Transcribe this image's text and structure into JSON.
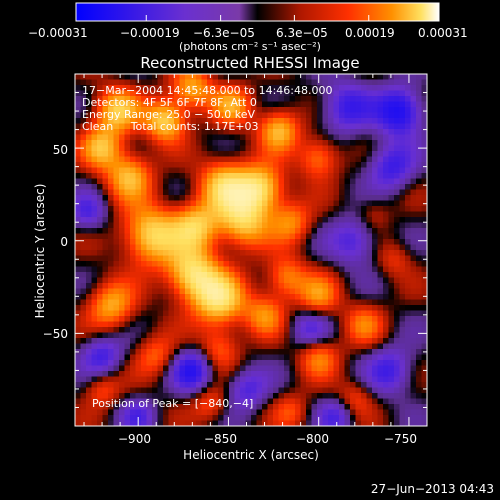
{
  "chart_data": {
    "type": "heatmap",
    "title": "Reconstructed RHESSI Image",
    "xlabel": "Heliocentric X (arcsec)",
    "ylabel": "Heliocentric Y (arcsec)",
    "xlim": [
      -935,
      -740
    ],
    "ylim": [
      -100,
      90
    ],
    "xticks": [
      -900,
      -850,
      -800,
      -750
    ],
    "yticks": [
      50,
      0,
      -50
    ],
    "xtick_labels": [
      "−900",
      "−850",
      "−800",
      "−750"
    ],
    "ytick_labels": [
      "50",
      "0",
      "−50"
    ],
    "colorbar": {
      "range": [
        -0.00031,
        0.00031
      ],
      "tick_values": [
        -0.00031,
        -0.00019,
        -6.3e-05,
        6.3e-05,
        0.00019,
        0.00031
      ],
      "tick_labels": [
        "−0.00031",
        "−0.00019",
        "−6.3e−05",
        "6.3e−05",
        "0.00019",
        "0.00031"
      ],
      "units_label": "(photons cm⁻² s⁻¹ asec⁻²)"
    },
    "annotations": {
      "time_range": "17−Mar−2004 14:45:48.000 to 14:46:48.000",
      "detectors": "Detectors: 4F 5F 6F 7F 8F, Att 0",
      "energy_range": "Energy Range: 25.0 − 50.0 keV",
      "clean_counts": "Clean     Total counts: 1.17E+03",
      "peak_position": "Position of Peak = [−840,−4]"
    },
    "peak": [
      -840,
      -4
    ],
    "blobs": [
      {
        "x": -870,
        "y": -18,
        "v": 1.0,
        "s": 10
      },
      {
        "x": -855,
        "y": -32,
        "v": 0.95,
        "s": 10
      },
      {
        "x": -893,
        "y": 3,
        "v": 0.95,
        "s": 11
      },
      {
        "x": -868,
        "y": 8,
        "v": 0.8,
        "s": 9
      },
      {
        "x": -842,
        "y": 10,
        "v": 0.85,
        "s": 10
      },
      {
        "x": -832,
        "y": 28,
        "v": 0.95,
        "s": 9
      },
      {
        "x": -852,
        "y": 30,
        "v": 0.85,
        "s": 10
      },
      {
        "x": -905,
        "y": 35,
        "v": 0.75,
        "s": 9
      },
      {
        "x": -920,
        "y": 50,
        "v": 0.7,
        "s": 8
      },
      {
        "x": -912,
        "y": 70,
        "v": 0.8,
        "s": 9
      },
      {
        "x": -885,
        "y": 65,
        "v": 0.9,
        "s": 8
      },
      {
        "x": -870,
        "y": 82,
        "v": 0.7,
        "s": 8
      },
      {
        "x": -848,
        "y": 73,
        "v": 0.6,
        "s": 8
      },
      {
        "x": -822,
        "y": 60,
        "v": 0.75,
        "s": 8
      },
      {
        "x": -800,
        "y": 45,
        "v": 0.6,
        "s": 8
      },
      {
        "x": -815,
        "y": 10,
        "v": 0.55,
        "s": 8
      },
      {
        "x": -818,
        "y": -20,
        "v": 0.6,
        "s": 8
      },
      {
        "x": -800,
        "y": -30,
        "v": 0.55,
        "s": 8
      },
      {
        "x": -830,
        "y": -40,
        "v": 0.55,
        "s": 8
      },
      {
        "x": -915,
        "y": -35,
        "v": 0.7,
        "s": 9
      },
      {
        "x": -890,
        "y": -62,
        "v": 0.45,
        "s": 8
      },
      {
        "x": -855,
        "y": -58,
        "v": 0.45,
        "s": 8
      },
      {
        "x": -800,
        "y": -62,
        "v": 0.55,
        "s": 8
      },
      {
        "x": -775,
        "y": -45,
        "v": 0.45,
        "s": 8
      },
      {
        "x": -920,
        "y": -80,
        "v": 0.4,
        "s": 7
      },
      {
        "x": -860,
        "y": -88,
        "v": 0.4,
        "s": 7
      },
      {
        "x": -815,
        "y": -92,
        "v": 0.35,
        "s": 7
      },
      {
        "x": -780,
        "y": -85,
        "v": 0.35,
        "s": 7
      },
      {
        "x": -770,
        "y": 15,
        "v": 0.25,
        "s": 7
      },
      {
        "x": -758,
        "y": -10,
        "v": 0.3,
        "s": 7
      },
      {
        "x": -785,
        "y": 72,
        "v": -0.6,
        "s": 10
      },
      {
        "x": -755,
        "y": 70,
        "v": -0.9,
        "s": 9
      },
      {
        "x": -760,
        "y": 40,
        "v": -0.6,
        "s": 9
      },
      {
        "x": -780,
        "y": 0,
        "v": -0.55,
        "s": 9
      },
      {
        "x": -760,
        "y": -70,
        "v": -0.55,
        "s": 9
      },
      {
        "x": -870,
        "y": -70,
        "v": -0.7,
        "s": 8
      },
      {
        "x": -920,
        "y": -62,
        "v": -0.55,
        "s": 8
      },
      {
        "x": -840,
        "y": -80,
        "v": -0.5,
        "s": 8
      },
      {
        "x": -805,
        "y": -48,
        "v": -0.45,
        "s": 8
      },
      {
        "x": -790,
        "y": -95,
        "v": -0.45,
        "s": 7
      },
      {
        "x": -928,
        "y": 15,
        "v": -0.45,
        "s": 7
      },
      {
        "x": -900,
        "y": -95,
        "v": -0.4,
        "s": 7
      }
    ]
  },
  "footer": {
    "timestamp": "27−Jun−2013 04:43"
  }
}
